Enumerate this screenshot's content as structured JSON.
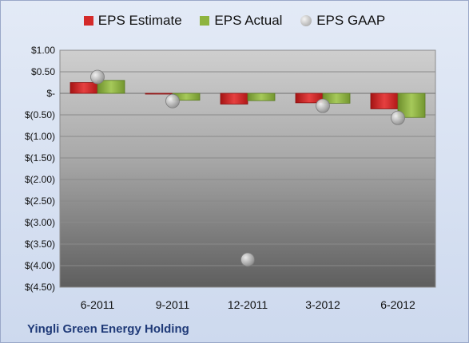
{
  "chart_data": {
    "type": "bar",
    "title": "",
    "xlabel": "",
    "ylabel": "",
    "categories": [
      "6-2011",
      "9-2011",
      "12-2011",
      "3-2012",
      "6-2012"
    ],
    "series": [
      {
        "name": "EPS Estimate",
        "kind": "bar",
        "color": "#d42a2a",
        "values": [
          0.25,
          -0.01,
          -0.25,
          -0.22,
          -0.36
        ]
      },
      {
        "name": "EPS Actual",
        "kind": "bar",
        "color": "#8eb43f",
        "values": [
          0.3,
          -0.16,
          -0.17,
          -0.23,
          -0.56
        ]
      },
      {
        "name": "EPS GAAP",
        "kind": "marker",
        "color": "#a9a9a9",
        "values": [
          0.38,
          -0.18,
          -3.86,
          -0.29,
          -0.57
        ]
      }
    ],
    "ylim": [
      -4.5,
      1.0
    ],
    "yticks": [
      1.0,
      0.5,
      0,
      -0.5,
      -1.0,
      -1.5,
      -2.0,
      -2.5,
      -3.0,
      -3.5,
      -4.0,
      -4.5
    ],
    "ytick_labels": [
      "$1.00",
      "$0.50",
      "$-",
      "$(0.50)",
      "$(1.00)",
      "$(1.50)",
      "$(2.00)",
      "$(2.50)",
      "$(3.00)",
      "$(3.50)",
      "$(4.00)",
      "$(4.50)"
    ],
    "grid": true,
    "legend": "top-center",
    "footer": "Yingli Green Energy Holding"
  }
}
